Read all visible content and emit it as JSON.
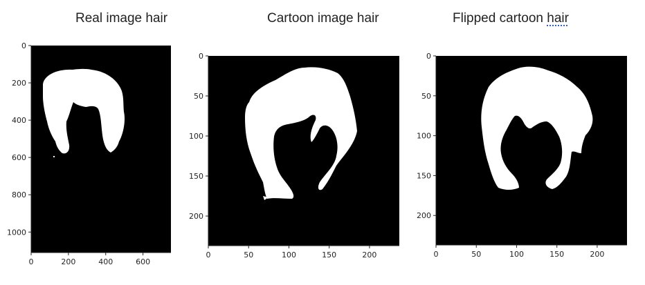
{
  "panels": [
    {
      "title_main": "Real image hair",
      "title_flag": ""
    },
    {
      "title_main": "Cartoon image hair",
      "title_flag": ""
    },
    {
      "title_main": "Flipped cartoon ",
      "title_flag": "hair"
    }
  ],
  "chart_data": [
    {
      "type": "image",
      "title": "Real image hair",
      "content": "binary hair mask, white on black",
      "xlim": [
        0,
        750
      ],
      "ylim": [
        1110,
        0
      ],
      "xticks": [
        0,
        200,
        400,
        600
      ],
      "yticks": [
        0,
        200,
        400,
        600,
        800,
        1000
      ],
      "colors": {
        "mask": "#ffffff",
        "background": "#000000"
      }
    },
    {
      "type": "image",
      "title": "Cartoon image hair",
      "content": "binary hair mask, white on black",
      "xlim": [
        0,
        237
      ],
      "ylim": [
        237,
        0
      ],
      "xticks": [
        0,
        50,
        100,
        150,
        200
      ],
      "yticks": [
        0,
        50,
        100,
        150,
        200
      ],
      "colors": {
        "mask": "#ffffff",
        "background": "#000000"
      }
    },
    {
      "type": "image",
      "title": "Flipped cartoon hair",
      "content": "binary hair mask, white on black, horizontally flipped",
      "xlim": [
        0,
        237
      ],
      "ylim": [
        237,
        0
      ],
      "xticks": [
        0,
        50,
        100,
        150,
        200
      ],
      "yticks": [
        0,
        50,
        100,
        150,
        200
      ],
      "colors": {
        "mask": "#ffffff",
        "background": "#000000"
      }
    }
  ]
}
